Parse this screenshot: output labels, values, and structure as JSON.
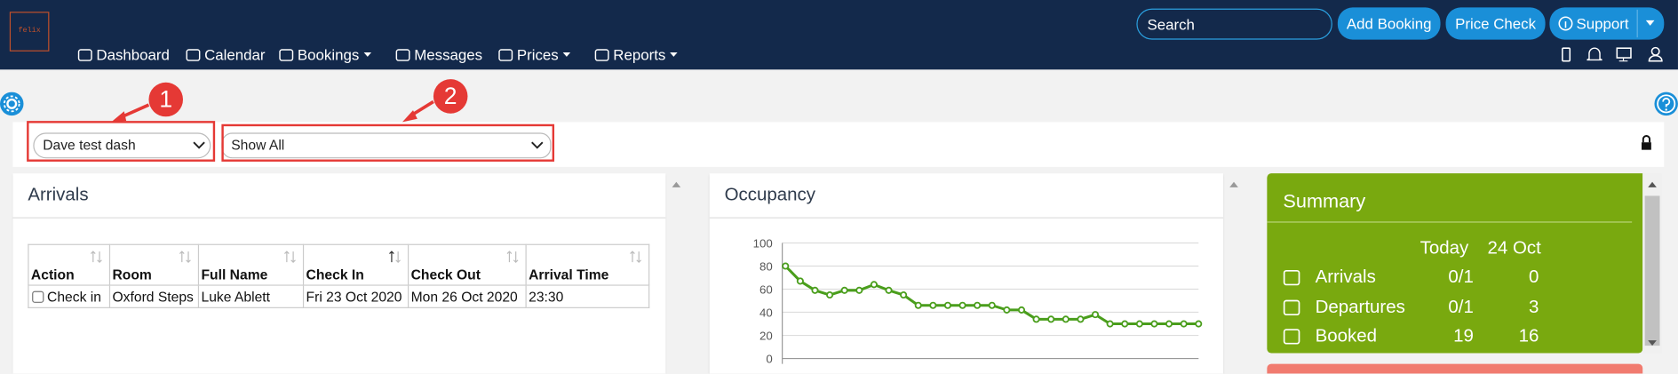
{
  "nav": {
    "logo": "felix",
    "menu": [
      "Dashboard",
      "Calendar",
      "Bookings",
      "Messages",
      "Prices",
      "Reports"
    ],
    "search_placeholder": "Search",
    "buttons": [
      "Add Booking",
      "Price Check",
      "Support"
    ]
  },
  "filters": {
    "dashboard": "Dave test dash",
    "view": "Show All",
    "callouts": [
      "1",
      "2"
    ]
  },
  "arrivals": {
    "title": "Arrivals",
    "table": {
      "columns": [
        "Action",
        "Room",
        "Full Name",
        "Check In",
        "Check Out",
        "Arrival Time"
      ],
      "rows": [
        [
          "Check in",
          "Oxford Steps",
          "Luke Ablett",
          "Fri 23 Oct 2020",
          "Mon 26 Oct 2020",
          "23:30"
        ]
      ]
    }
  },
  "chart_data": {
    "type": "line",
    "title": "Occupancy",
    "values": [
      80,
      67,
      59,
      55,
      59,
      59,
      64,
      59,
      55,
      46,
      46,
      46,
      46,
      46,
      46,
      42,
      42,
      34,
      34,
      34,
      34,
      38,
      30,
      30,
      30,
      30,
      30,
      30,
      30
    ],
    "color": "#4a9e1c",
    "ylim": [
      0,
      100
    ],
    "yticks": [
      0,
      20,
      40,
      60,
      80,
      100
    ],
    "grid": true
  },
  "summary": {
    "title": "Summary",
    "columns": [
      "Today",
      "24 Oct"
    ],
    "rows": [
      {
        "label": "Arrivals",
        "values": [
          "0/1",
          0
        ]
      },
      {
        "label": "Departures",
        "values": [
          "0/1",
          3
        ]
      },
      {
        "label": "Booked",
        "values": [
          19,
          16
        ]
      }
    ]
  }
}
